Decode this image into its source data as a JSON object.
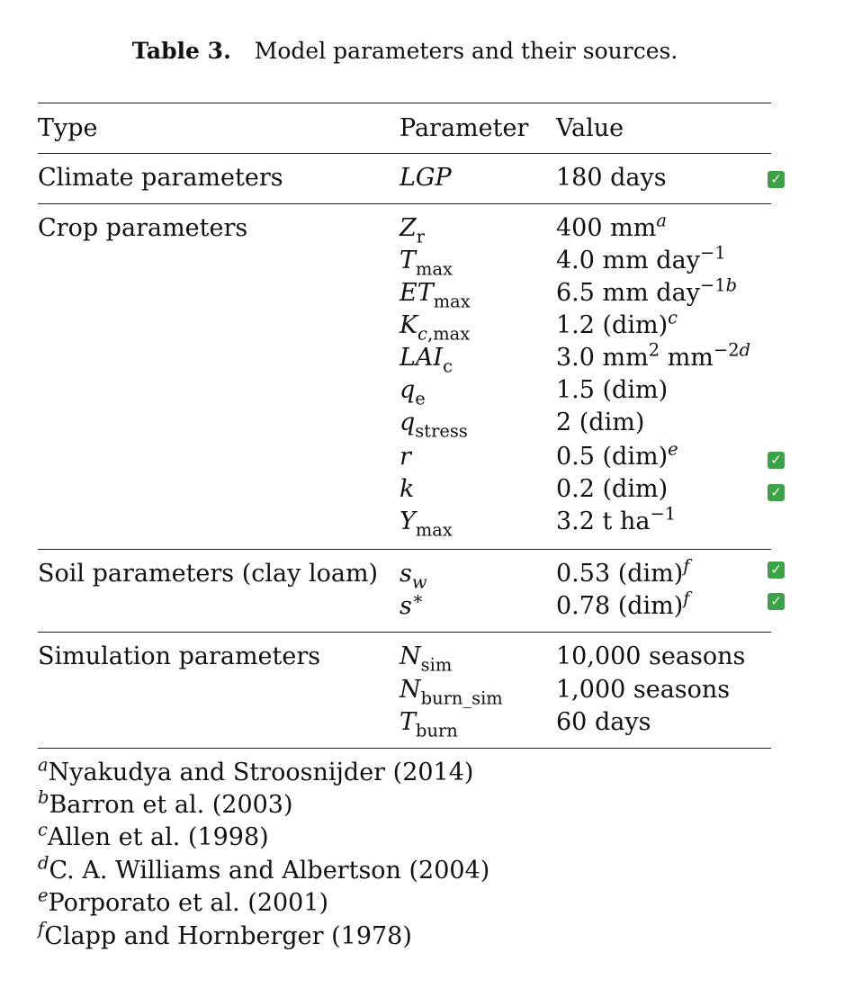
{
  "caption": {
    "label": "Table 3.",
    "text": "Model parameters and their sources."
  },
  "headers": {
    "type": "Type",
    "parameter": "Parameter",
    "value": "Value"
  },
  "rows": {
    "climate": {
      "type": "Climate parameters",
      "lgp_value": "180 days"
    },
    "crop": {
      "type": "Crop parameters",
      "zr_value": "400 mm",
      "zr_sup": "a",
      "tmax_value": "4.0 mm day",
      "tmax_sup": "−1",
      "etmax_value": "6.5 mm day",
      "etmax_sup_num": "−1",
      "etmax_sup_note": "b",
      "kc_value": "1.2 (dim)",
      "kc_sup": "c",
      "lai_value_a": "3.0 mm",
      "lai_sup_1": "2",
      "lai_value_b": " mm",
      "lai_sup_num": "−2",
      "lai_sup_note": "d",
      "qe_value": "1.5 (dim)",
      "qstress_value": "2 (dim)",
      "r_value": "0.5 (dim)",
      "r_sup": "e",
      "k_value": "0.2 (dim)",
      "ymax_value": "3.2 t ha",
      "ymax_sup": "−1"
    },
    "soil": {
      "type": "Soil parameters (clay loam)",
      "sw_value": "0.53 (dim)",
      "sw_sup": "f",
      "sstar_value": "0.78 (dim)",
      "sstar_sup": "f"
    },
    "simulation": {
      "type": "Simulation parameters",
      "nsim_value": "10,000 seasons",
      "nburn_value": "1,000 seasons",
      "tburn_value": "60 days"
    }
  },
  "footnotes": [
    {
      "mark": "a",
      "text": "Nyakudya and Stroosnijder (2014)"
    },
    {
      "mark": "b",
      "text": "Barron et al. (2003)"
    },
    {
      "mark": "c",
      "text": "Allen et al. (1998)"
    },
    {
      "mark": "d",
      "text": "C. A. Williams and Albertson (2004)"
    },
    {
      "mark": "e",
      "text": "Porporato et al. (2001)"
    },
    {
      "mark": "f",
      "text": "Clapp and Hornberger (1978)"
    }
  ],
  "icons": {
    "check": "check-mark-icon",
    "check_color": "#3aa346"
  }
}
